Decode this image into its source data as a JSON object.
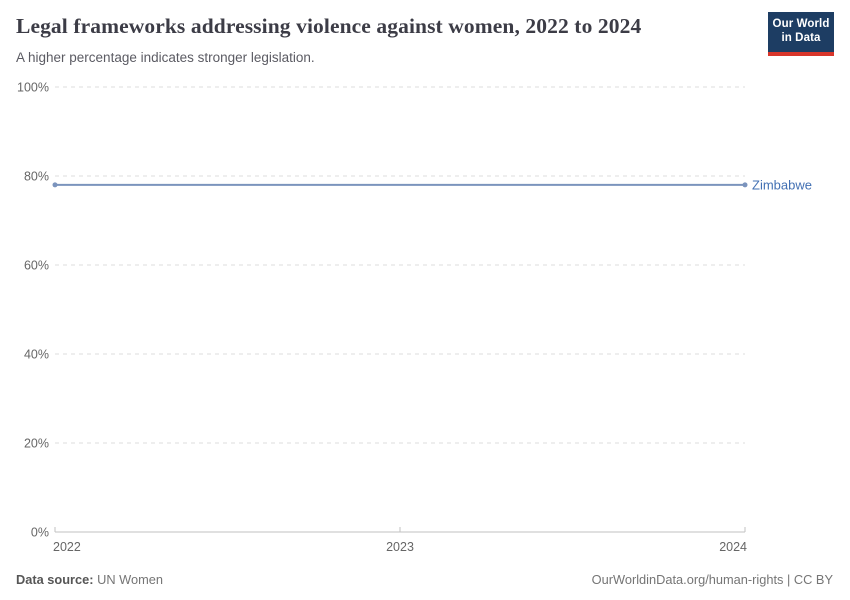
{
  "header": {
    "title": "Legal frameworks addressing violence against women, 2022 to 2024",
    "subtitle": "A higher percentage indicates stronger legislation.",
    "logo": {
      "line1": "Our World",
      "line2": "in Data"
    }
  },
  "chart_data": {
    "type": "line",
    "title": "Legal frameworks addressing violence against women, 2022 to 2024",
    "x": [
      2022,
      2023,
      2024
    ],
    "xticks": [
      2022,
      2023,
      2024
    ],
    "series": [
      {
        "name": "Zimbabwe",
        "values": [
          78,
          78,
          78
        ],
        "color": "#7b94bd",
        "label_color": "#4270b3"
      }
    ],
    "ylim": [
      0,
      100
    ],
    "yticks": [
      0,
      20,
      40,
      60,
      80,
      100
    ],
    "ytick_suffix": "%",
    "xlabel": "",
    "ylabel": "",
    "grid": "horizontal-dashed",
    "legend": "end-of-line-label"
  },
  "colors": {
    "axis": "#c2c2c2",
    "gridline": "#dedede",
    "tick_text": "#666666"
  },
  "footer": {
    "source_label": "Data source:",
    "source_value": " UN Women",
    "right_text": "OurWorldinData.org/human-rights | CC BY"
  }
}
